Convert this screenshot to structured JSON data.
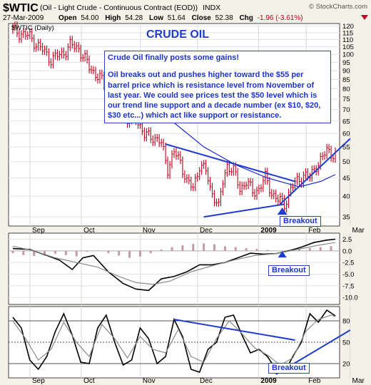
{
  "header": {
    "ticker": "$WTIC",
    "name": "(Oil - Light Crude - Continuous Contract (EOD))",
    "exchange": "INDX",
    "date": "27-Mar-2009",
    "open_label": "Open",
    "open": "54.00",
    "high_label": "High",
    "high": "54.28",
    "low_label": "Low",
    "low": "51.64",
    "close_label": "Close",
    "close": "52.38",
    "chg_label": "Chg",
    "chg": "-1.96 (-3.61%)",
    "chg_icon": "down-triangle-icon",
    "brand": "© StockCharts.com"
  },
  "main_panel": {
    "legend": "$WTIC (Daily)",
    "headline": "CRUDE OIL",
    "annotation": [
      "Crude Oil finally posts some gains!",
      "Oil breaks out and pushes higher toward the $55 per barrel price which is  resistance level from November of last year. We could see prices test the $50 level which is our trend line support and a decade number (ex $10, $20, $30 etc...) which act like support or resistance."
    ],
    "breakout_label": "Breakout"
  },
  "macd_panel": {
    "breakout_label": "Breakout"
  },
  "stoch_panel": {
    "breakout_label": "Breakout"
  },
  "colors": {
    "background": "#f4f1e8",
    "plot_bg": "#ffffff",
    "bars": "#c0001c",
    "moving_average": "#1a26c8",
    "annotation_blue": "#1f3cd0",
    "histogram": "#c39aaa",
    "signal": "#8a8a8a"
  },
  "chart_data": [
    {
      "type": "bar",
      "title": "$WTIC (Daily)",
      "xlabel": "",
      "ylabel": "",
      "x_ticks": [
        "Sep",
        "Oct",
        "Nov",
        "Dec",
        "2009",
        "Feb",
        "Mar"
      ],
      "y_ticks": [
        35,
        40,
        45,
        50,
        55,
        60,
        65,
        70,
        75,
        80,
        85,
        90,
        95,
        100,
        105,
        110,
        115,
        120
      ],
      "ylim": [
        33,
        122
      ],
      "scale": "log",
      "grid": true,
      "price_path": [
        [
          0,
          117
        ],
        [
          8,
          112
        ],
        [
          13,
          104
        ],
        [
          18,
          97
        ],
        [
          23,
          100
        ],
        [
          27,
          106
        ],
        [
          31,
          104
        ],
        [
          36,
          92
        ],
        [
          41,
          86
        ],
        [
          45,
          78
        ],
        [
          50,
          72
        ],
        [
          54,
          65
        ],
        [
          58,
          67
        ],
        [
          62,
          59
        ],
        [
          66,
          59
        ],
        [
          70,
          56
        ],
        [
          73,
          48
        ],
        [
          76,
          53
        ],
        [
          79,
          50
        ],
        [
          82,
          44
        ],
        [
          85,
          42
        ],
        [
          88,
          49
        ],
        [
          91,
          47
        ],
        [
          93,
          42
        ],
        [
          95,
          40
        ],
        [
          97,
          37
        ],
        [
          99,
          44
        ],
        [
          101,
          49
        ],
        [
          104,
          47
        ],
        [
          107,
          42
        ],
        [
          110,
          44
        ],
        [
          113,
          41
        ],
        [
          116,
          42
        ],
        [
          119,
          45
        ],
        [
          122,
          41
        ],
        [
          125,
          39
        ],
        [
          128,
          38
        ],
        [
          131,
          42
        ],
        [
          134,
          44
        ],
        [
          137,
          46
        ],
        [
          140,
          45
        ],
        [
          143,
          49
        ],
        [
          146,
          51
        ],
        [
          148,
          54
        ],
        [
          150,
          53
        ],
        [
          152,
          52.38
        ]
      ],
      "series": [
        {
          "name": "moving-average",
          "values": [
            [
              45,
              95
            ],
            [
              60,
              80
            ],
            [
              75,
              65
            ],
            [
              90,
              55
            ],
            [
              105,
              49
            ],
            [
              120,
              45
            ],
            [
              135,
              42.5
            ],
            [
              145,
              44
            ],
            [
              152,
              46
            ]
          ]
        }
      ],
      "trendlines": [
        {
          "name": "resistance",
          "from": [
            72,
            56
          ],
          "to": [
            133,
            44
          ]
        },
        {
          "name": "support",
          "from": [
            90,
            35
          ],
          "to": [
            128,
            38
          ]
        },
        {
          "name": "support-extension",
          "from": [
            126,
            38
          ],
          "to": [
            159,
            58
          ]
        }
      ]
    },
    {
      "type": "line",
      "title": "",
      "y_ticks": [
        2.5,
        0.0,
        -2.5,
        -5.0,
        -7.5,
        -10.0
      ],
      "ylim": [
        -11.5,
        3.8
      ],
      "grid": true,
      "series": [
        {
          "name": "",
          "values": [
            [
              0,
              0.5
            ],
            [
              8,
              0.3
            ],
            [
              15,
              -0.8
            ],
            [
              22,
              -2.0
            ],
            [
              28,
              -4.0
            ],
            [
              33,
              -1.5
            ],
            [
              38,
              -1.0
            ],
            [
              45,
              -4.5
            ],
            [
              52,
              -7.0
            ],
            [
              58,
              -8.2
            ],
            [
              64,
              -8.5
            ],
            [
              70,
              -6.0
            ],
            [
              76,
              -5.5
            ],
            [
              82,
              -4.5
            ],
            [
              88,
              -3.0
            ],
            [
              94,
              -3.0
            ],
            [
              100,
              -2.5
            ],
            [
              106,
              -1.5
            ],
            [
              112,
              -0.5
            ],
            [
              118,
              -0.7
            ],
            [
              124,
              -0.6
            ],
            [
              130,
              0.0
            ],
            [
              136,
              0.8
            ],
            [
              142,
              1.8
            ],
            [
              148,
              2.3
            ],
            [
              152,
              2.5
            ]
          ]
        },
        {
          "name": "",
          "values": [
            [
              0,
              1.0
            ],
            [
              10,
              0.0
            ],
            [
              20,
              -1.5
            ],
            [
              30,
              -2.5
            ],
            [
              40,
              -3.5
            ],
            [
              50,
              -5.5
            ],
            [
              58,
              -6.8
            ],
            [
              66,
              -7.2
            ],
            [
              74,
              -6.5
            ],
            [
              84,
              -4.5
            ],
            [
              94,
              -3.2
            ],
            [
              104,
              -2.0
            ],
            [
              114,
              -1.0
            ],
            [
              124,
              -0.6
            ],
            [
              134,
              0.3
            ],
            [
              144,
              1.2
            ],
            [
              152,
              1.8
            ]
          ]
        }
      ],
      "histogram": [
        [
          0,
          -0.5
        ],
        [
          5,
          -0.9
        ],
        [
          10,
          -1.1
        ],
        [
          15,
          -1.0
        ],
        [
          20,
          -0.6
        ],
        [
          25,
          -0.9
        ],
        [
          30,
          -1.2
        ],
        [
          35,
          -0.2
        ],
        [
          40,
          0.1
        ],
        [
          45,
          -0.5
        ],
        [
          50,
          -1.0
        ],
        [
          55,
          -1.5
        ],
        [
          60,
          -1.2
        ],
        [
          65,
          -0.5
        ],
        [
          70,
          0.3
        ],
        [
          75,
          0.8
        ],
        [
          80,
          1.2
        ],
        [
          85,
          1.5
        ],
        [
          90,
          1.6
        ],
        [
          95,
          1.4
        ],
        [
          100,
          1.0
        ],
        [
          105,
          0.8
        ],
        [
          110,
          0.6
        ],
        [
          115,
          0.4
        ],
        [
          120,
          0.2
        ],
        [
          125,
          0.0
        ],
        [
          130,
          0.2
        ],
        [
          135,
          0.4
        ],
        [
          140,
          0.6
        ],
        [
          145,
          0.8
        ],
        [
          150,
          1.0
        ]
      ]
    },
    {
      "type": "line",
      "title": "",
      "y_ticks": [
        80,
        50,
        20
      ],
      "ylim": [
        0,
        100
      ],
      "grid": true,
      "series": [
        {
          "name": "",
          "values": [
            [
              0,
              85
            ],
            [
              4,
              70
            ],
            [
              8,
              25
            ],
            [
              12,
              12
            ],
            [
              16,
              30
            ],
            [
              20,
              65
            ],
            [
              24,
              90
            ],
            [
              28,
              60
            ],
            [
              32,
              22
            ],
            [
              36,
              20
            ],
            [
              40,
              70
            ],
            [
              44,
              88
            ],
            [
              48,
              50
            ],
            [
              52,
              18
            ],
            [
              56,
              25
            ],
            [
              60,
              70
            ],
            [
              64,
              55
            ],
            [
              68,
              20
            ],
            [
              72,
              30
            ],
            [
              76,
              82
            ],
            [
              80,
              58
            ],
            [
              84,
              12
            ],
            [
              88,
              8
            ],
            [
              92,
              40
            ],
            [
              96,
              50
            ],
            [
              100,
              85
            ],
            [
              104,
              88
            ],
            [
              108,
              60
            ],
            [
              112,
              35
            ],
            [
              116,
              40
            ],
            [
              120,
              30
            ],
            [
              124,
              12
            ],
            [
              128,
              8
            ],
            [
              132,
              30
            ],
            [
              136,
              50
            ],
            [
              140,
              90
            ],
            [
              144,
              78
            ],
            [
              148,
              95
            ],
            [
              152,
              87
            ]
          ]
        },
        {
          "name": "",
          "values": [
            [
              0,
              80
            ],
            [
              6,
              55
            ],
            [
              12,
              25
            ],
            [
              18,
              40
            ],
            [
              24,
              78
            ],
            [
              30,
              50
            ],
            [
              36,
              30
            ],
            [
              42,
              75
            ],
            [
              48,
              55
            ],
            [
              54,
              28
            ],
            [
              60,
              58
            ],
            [
              66,
              40
            ],
            [
              72,
              35
            ],
            [
              78,
              68
            ],
            [
              84,
              30
            ],
            [
              90,
              22
            ],
            [
              96,
              55
            ],
            [
              102,
              80
            ],
            [
              108,
              62
            ],
            [
              114,
              42
            ],
            [
              120,
              32
            ],
            [
              126,
              18
            ],
            [
              132,
              28
            ],
            [
              138,
              65
            ],
            [
              144,
              82
            ],
            [
              150,
              88
            ],
            [
              152,
              86
            ]
          ]
        }
      ],
      "trendlines": [
        {
          "name": "downtrend",
          "from": [
            76,
            82
          ],
          "to": [
            133,
            53
          ]
        },
        {
          "name": "uptrend",
          "from": [
            124,
            5
          ],
          "to": [
            159,
            67
          ]
        }
      ]
    }
  ]
}
